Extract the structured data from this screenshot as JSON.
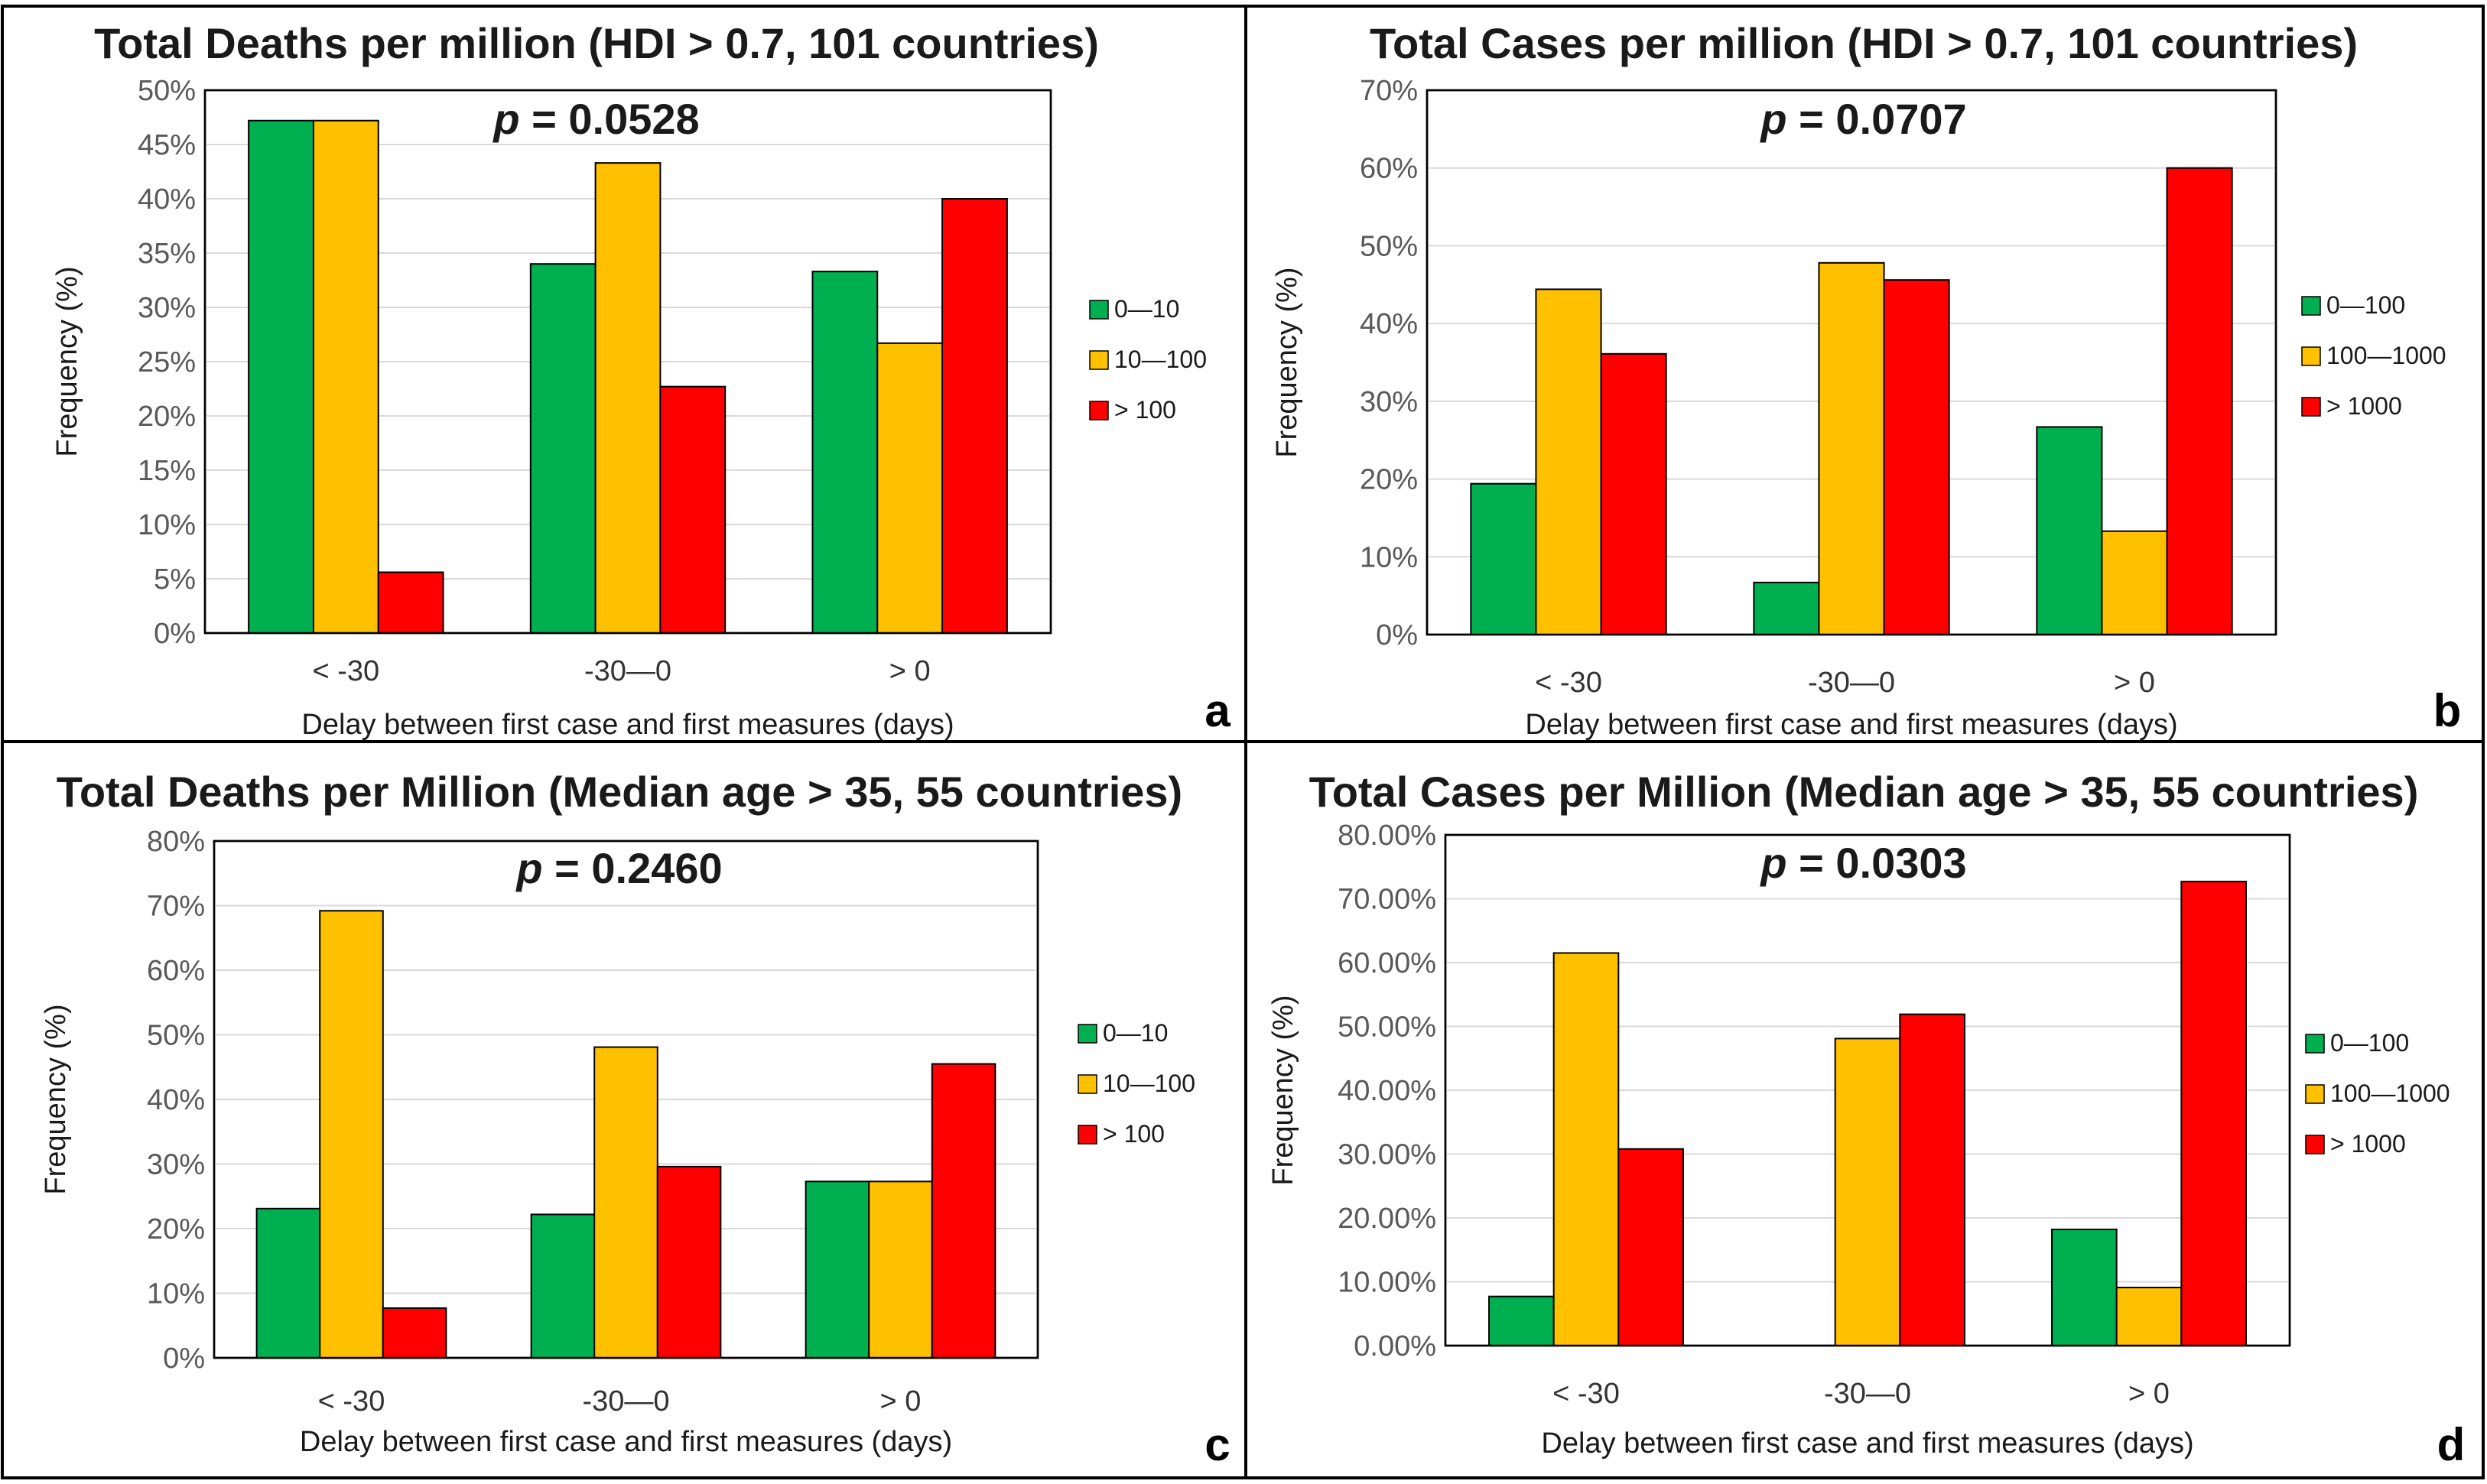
{
  "colors": {
    "green": "#00b050",
    "orange": "#ffc000",
    "red": "#ff0000",
    "grid": "#d9d9d9",
    "frame": "#000000"
  },
  "chart_data": [
    {
      "type": "bar",
      "panel_letter": "a",
      "title": "Total Deaths per million (HDI > 0.7, 101 countries)",
      "annotation": {
        "prefix": "p",
        "text": " = 0.0528"
      },
      "xlabel": "Delay between first case and first measures (days)",
      "ylabel": "Frequency (%)",
      "categories": [
        "< -30",
        "-30—0",
        "> 0"
      ],
      "ylim": [
        0,
        50
      ],
      "yticks": [
        "0%",
        "5%",
        "10%",
        "15%",
        "20%",
        "25%",
        "30%",
        "35%",
        "40%",
        "45%",
        "50%"
      ],
      "ystep": 5,
      "legend_position": "right",
      "series": [
        {
          "name": "0—10",
          "color": "green",
          "values": [
            47.2,
            34.0,
            33.3
          ]
        },
        {
          "name": "10—100",
          "color": "orange",
          "values": [
            47.2,
            43.3,
            26.7
          ]
        },
        {
          "name": "> 100",
          "color": "red",
          "values": [
            5.6,
            22.7,
            40.0
          ]
        }
      ]
    },
    {
      "type": "bar",
      "panel_letter": "b",
      "title": "Total Cases per million (HDI > 0.7, 101 countries)",
      "annotation": {
        "prefix": "p",
        "text": " = 0.0707"
      },
      "xlabel": "Delay between first case and first measures (days)",
      "ylabel": "Frequency (%)",
      "categories": [
        "< -30",
        "-30—0",
        "> 0"
      ],
      "ylim": [
        0,
        70
      ],
      "yticks": [
        "0%",
        "10%",
        "20%",
        "30%",
        "40%",
        "50%",
        "60%",
        "70%"
      ],
      "ystep": 10,
      "legend_position": "right",
      "series": [
        {
          "name": "0—100",
          "color": "green",
          "values": [
            19.4,
            6.7,
            26.7
          ]
        },
        {
          "name": "100—1000",
          "color": "orange",
          "values": [
            44.4,
            47.8,
            13.3
          ]
        },
        {
          "name": "> 1000",
          "color": "red",
          "values": [
            36.1,
            45.6,
            60.0
          ]
        }
      ]
    },
    {
      "type": "bar",
      "panel_letter": "c",
      "title": "Total Deaths per Million (Median age > 35, 55 countries)",
      "annotation": {
        "prefix": "p",
        "text": " = 0.2460"
      },
      "xlabel": "Delay between first case and first measures (days)",
      "ylabel": "Frequency (%)",
      "categories": [
        "< -30",
        "-30—0",
        "> 0"
      ],
      "ylim": [
        0,
        80
      ],
      "yticks": [
        "0%",
        "10%",
        "20%",
        "30%",
        "40%",
        "50%",
        "60%",
        "70%",
        "80%"
      ],
      "ystep": 10,
      "legend_position": "right",
      "series": [
        {
          "name": "0—10",
          "color": "green",
          "values": [
            23.1,
            22.2,
            27.3
          ]
        },
        {
          "name": "10—100",
          "color": "orange",
          "values": [
            69.2,
            48.1,
            27.3
          ]
        },
        {
          "name": "> 100",
          "color": "red",
          "values": [
            7.7,
            29.6,
            45.5
          ]
        }
      ]
    },
    {
      "type": "bar",
      "panel_letter": "d",
      "title": "Total Cases per Million (Median age > 35, 55 countries)",
      "annotation": {
        "prefix": "p",
        "text": " = 0.0303"
      },
      "xlabel": "Delay between first case and first measures (days)",
      "ylabel": "Frequency (%)",
      "categories": [
        "< -30",
        "-30—0",
        "> 0"
      ],
      "ylim": [
        0,
        80
      ],
      "yticks": [
        "0.00%",
        "10.00%",
        "20.00%",
        "30.00%",
        "40.00%",
        "50.00%",
        "60.00%",
        "70.00%",
        "80.00%"
      ],
      "ystep": 10,
      "legend_position": "right",
      "series": [
        {
          "name": "0—100",
          "color": "green",
          "values": [
            7.7,
            0.0,
            18.2
          ]
        },
        {
          "name": "100—1000",
          "color": "orange",
          "values": [
            61.5,
            48.1,
            9.1
          ]
        },
        {
          "name": "> 1000",
          "color": "red",
          "values": [
            30.8,
            51.9,
            72.7
          ]
        }
      ]
    }
  ]
}
